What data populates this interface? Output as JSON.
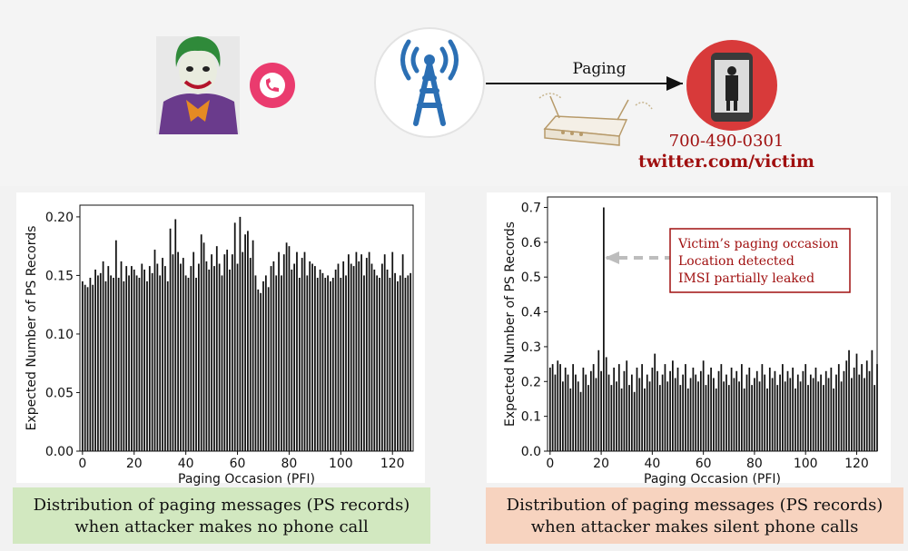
{
  "illustration": {
    "paging_label": "Paging",
    "victim_phone": "700-490-0301",
    "victim_handle": "twitter.com/victim",
    "icons": [
      "joker-attacker-icon",
      "phone-call-icon",
      "cell-tower-icon",
      "router-icon",
      "victim-phone-icon"
    ],
    "colors": {
      "tower_blue": "#2b6fb4",
      "call_pink": "#e83d6f",
      "victim_red": "#d83a3a"
    }
  },
  "captions": {
    "left": [
      "Distribution of paging messages (PS records)",
      "when attacker makes no phone call"
    ],
    "right": [
      "Distribution of paging messages (PS records)",
      "when attacker makes silent phone calls"
    ]
  },
  "annotation": {
    "lines": [
      "Victim’s paging occasion",
      "Location detected",
      "IMSI partially leaked"
    ],
    "color": "#a01010"
  },
  "chart_data": [
    {
      "type": "bar",
      "xlabel": "Paging Occasion (PFI)",
      "ylabel": "Expected Number of PS Records",
      "xlim": [
        -1,
        128
      ],
      "ylim": [
        0,
        0.21
      ],
      "xticks": [
        0,
        20,
        40,
        60,
        80,
        100,
        120
      ],
      "yticks": [
        0.0,
        0.05,
        0.1,
        0.15,
        0.2
      ],
      "ytick_labels": [
        "0.00",
        "0.05",
        "0.10",
        "0.15",
        "0.20"
      ],
      "grid": false,
      "color": "#111111",
      "x_start": 0,
      "values": [
        0.145,
        0.142,
        0.14,
        0.148,
        0.142,
        0.155,
        0.15,
        0.152,
        0.162,
        0.145,
        0.158,
        0.15,
        0.148,
        0.18,
        0.148,
        0.162,
        0.145,
        0.158,
        0.15,
        0.158,
        0.155,
        0.15,
        0.148,
        0.16,
        0.155,
        0.145,
        0.158,
        0.152,
        0.172,
        0.16,
        0.15,
        0.165,
        0.158,
        0.145,
        0.19,
        0.168,
        0.198,
        0.17,
        0.16,
        0.165,
        0.15,
        0.148,
        0.158,
        0.17,
        0.148,
        0.16,
        0.185,
        0.178,
        0.162,
        0.155,
        0.168,
        0.158,
        0.175,
        0.16,
        0.15,
        0.168,
        0.172,
        0.155,
        0.168,
        0.195,
        0.16,
        0.2,
        0.17,
        0.185,
        0.188,
        0.165,
        0.18,
        0.15,
        0.138,
        0.135,
        0.145,
        0.15,
        0.14,
        0.158,
        0.162,
        0.15,
        0.17,
        0.15,
        0.168,
        0.178,
        0.175,
        0.155,
        0.16,
        0.17,
        0.148,
        0.165,
        0.17,
        0.15,
        0.162,
        0.16,
        0.158,
        0.148,
        0.155,
        0.152,
        0.148,
        0.15,
        0.145,
        0.148,
        0.155,
        0.16,
        0.148,
        0.162,
        0.15,
        0.168,
        0.16,
        0.158,
        0.17,
        0.162,
        0.168,
        0.15,
        0.165,
        0.17,
        0.16,
        0.155,
        0.15,
        0.148,
        0.16,
        0.168,
        0.155,
        0.148,
        0.17,
        0.152,
        0.145,
        0.15,
        0.168,
        0.148,
        0.15,
        0.152
      ]
    },
    {
      "type": "bar",
      "xlabel": "Paging Occasion (PFI)",
      "ylabel": "Expected Number of PS Records",
      "xlim": [
        -1,
        128
      ],
      "ylim": [
        0,
        0.73
      ],
      "xticks": [
        0,
        20,
        40,
        60,
        80,
        100,
        120
      ],
      "yticks": [
        0.0,
        0.1,
        0.2,
        0.3,
        0.4,
        0.5,
        0.6,
        0.7
      ],
      "ytick_labels": [
        "0.0",
        "0.1",
        "0.2",
        "0.3",
        "0.4",
        "0.5",
        "0.6",
        "0.7"
      ],
      "grid": false,
      "color": "#111111",
      "x_start": 0,
      "highlight": {
        "x": 21,
        "value": 0.7
      },
      "values": [
        0.24,
        0.25,
        0.22,
        0.26,
        0.25,
        0.2,
        0.24,
        0.22,
        0.18,
        0.25,
        0.22,
        0.2,
        0.17,
        0.24,
        0.22,
        0.19,
        0.23,
        0.25,
        0.21,
        0.29,
        0.23,
        0.7,
        0.27,
        0.22,
        0.19,
        0.24,
        0.2,
        0.25,
        0.18,
        0.23,
        0.26,
        0.19,
        0.22,
        0.17,
        0.24,
        0.21,
        0.25,
        0.18,
        0.22,
        0.2,
        0.24,
        0.28,
        0.23,
        0.19,
        0.22,
        0.25,
        0.2,
        0.23,
        0.26,
        0.21,
        0.24,
        0.19,
        0.22,
        0.25,
        0.18,
        0.21,
        0.24,
        0.22,
        0.2,
        0.23,
        0.26,
        0.19,
        0.22,
        0.24,
        0.21,
        0.18,
        0.23,
        0.25,
        0.2,
        0.22,
        0.19,
        0.24,
        0.21,
        0.23,
        0.2,
        0.25,
        0.18,
        0.22,
        0.24,
        0.19,
        0.21,
        0.23,
        0.2,
        0.25,
        0.22,
        0.18,
        0.24,
        0.21,
        0.23,
        0.19,
        0.22,
        0.25,
        0.2,
        0.23,
        0.21,
        0.24,
        0.18,
        0.22,
        0.2,
        0.23,
        0.25,
        0.19,
        0.22,
        0.21,
        0.24,
        0.2,
        0.22,
        0.19,
        0.23,
        0.21,
        0.24,
        0.18,
        0.22,
        0.25,
        0.2,
        0.23,
        0.26,
        0.29,
        0.21,
        0.24,
        0.28,
        0.22,
        0.25,
        0.21,
        0.26,
        0.23,
        0.29,
        0.19,
        0.25
      ]
    }
  ]
}
